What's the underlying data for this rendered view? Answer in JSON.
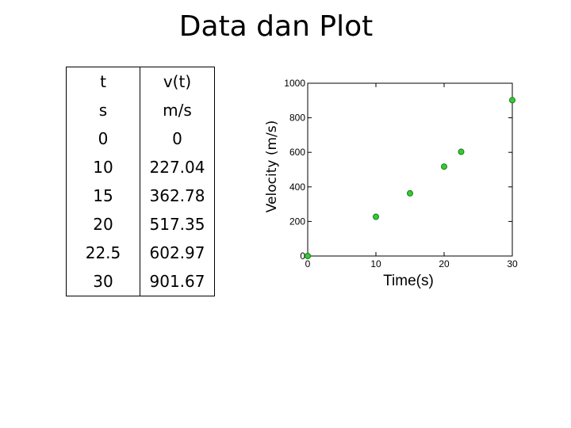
{
  "slide": {
    "title": "Data dan Plot"
  },
  "table": {
    "headers": [
      "t",
      "v(t)"
    ],
    "units": [
      "s",
      "m/s"
    ],
    "rows": [
      [
        "0",
        "0"
      ],
      [
        "10",
        "227.04"
      ],
      [
        "15",
        "362.78"
      ],
      [
        "20",
        "517.35"
      ],
      [
        "22.5",
        "602.97"
      ],
      [
        "30",
        "901.67"
      ]
    ]
  },
  "chart_data": {
    "type": "scatter",
    "title": "",
    "xlabel": "Time(s)",
    "ylabel": "Velocity (m/s)",
    "xlim": [
      0,
      30
    ],
    "ylim": [
      0,
      1000
    ],
    "xticks": [
      0,
      10,
      20,
      30
    ],
    "yticks": [
      0,
      200,
      400,
      600,
      800,
      1000
    ],
    "grid": false,
    "marker_color": "#33cc33",
    "marker_edge_color": "#1a7a1a",
    "series": [
      {
        "x": [
          0,
          10,
          15,
          20,
          22.5,
          30
        ],
        "y": [
          0,
          227.04,
          362.78,
          517.35,
          602.97,
          901.67
        ]
      }
    ]
  }
}
